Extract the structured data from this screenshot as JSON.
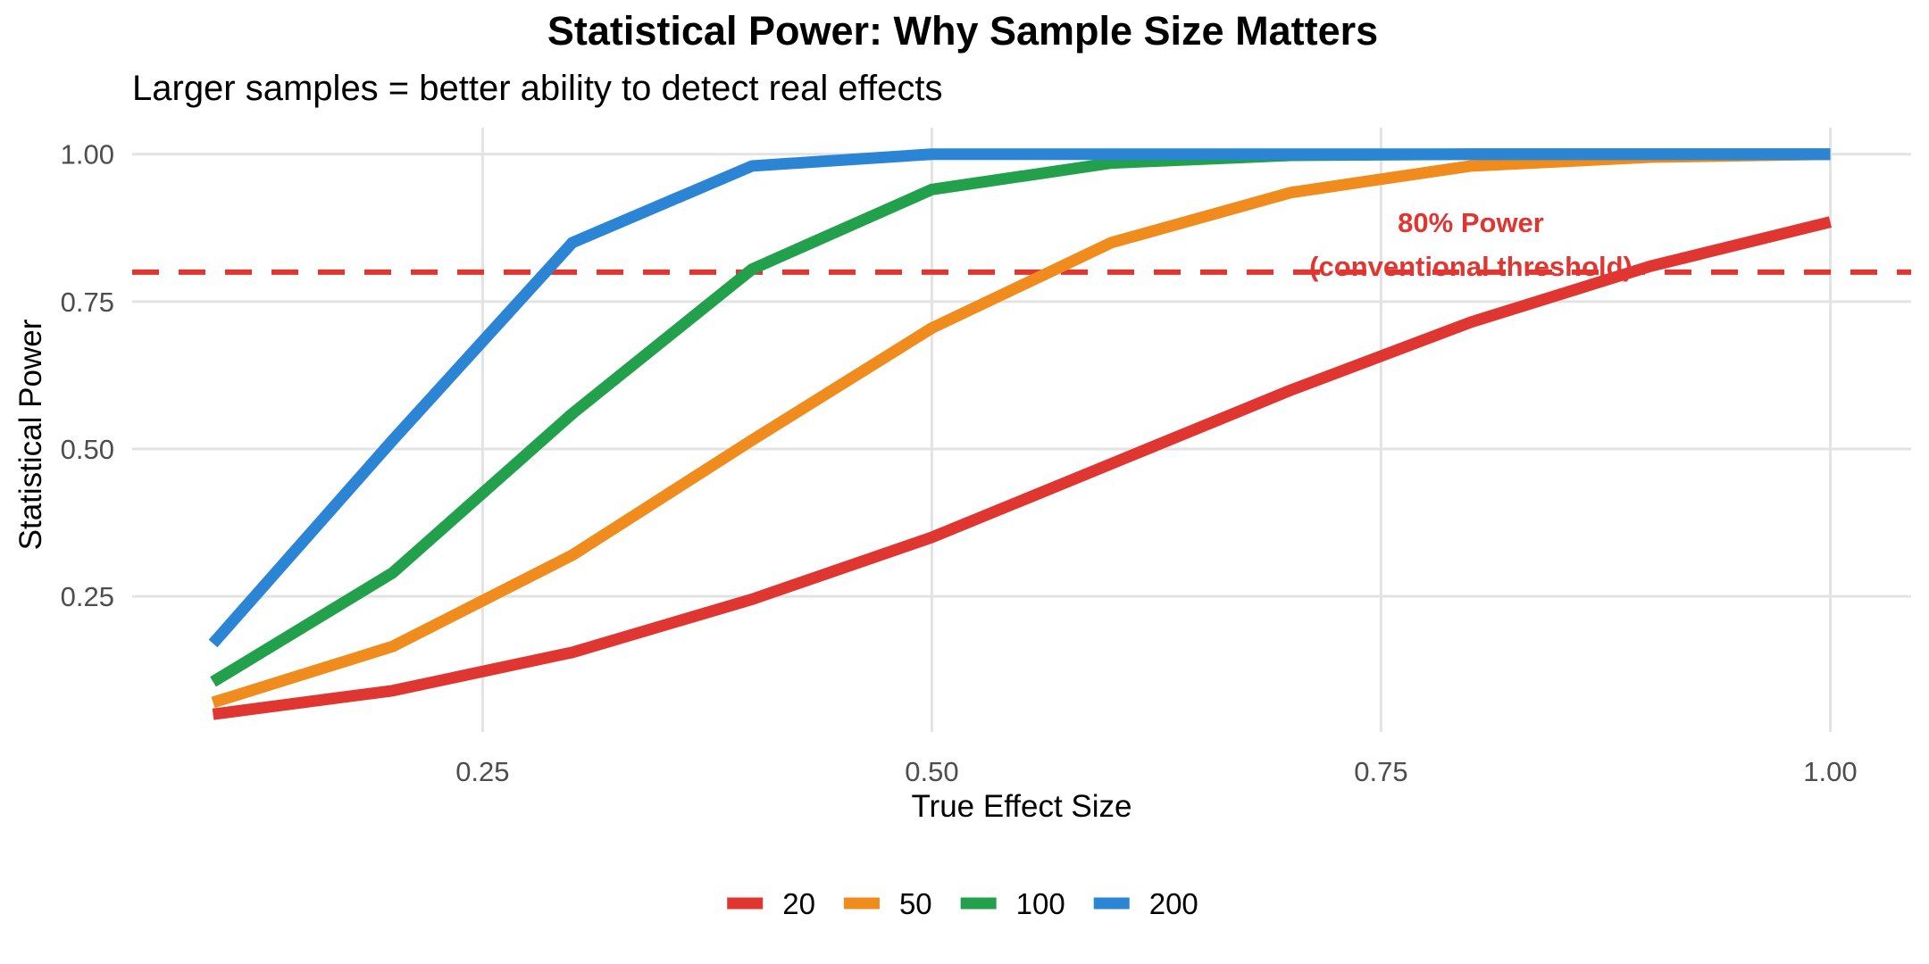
{
  "chart_data": {
    "type": "line",
    "title": "Statistical Power: Why Sample Size Matters",
    "subtitle": "Larger samples = better ability to detect real effects",
    "xlabel": "True Effect Size",
    "ylabel": "Statistical Power",
    "xlim": [
      0.055,
      1.045
    ],
    "ylim": [
      0.02,
      1.045
    ],
    "x_ticks": [
      {
        "value": 0.25,
        "label": "0.25"
      },
      {
        "value": 0.5,
        "label": "0.50"
      },
      {
        "value": 0.75,
        "label": "0.75"
      },
      {
        "value": 1.0,
        "label": "1.00"
      }
    ],
    "y_ticks": [
      {
        "value": 0.25,
        "label": "0.25"
      },
      {
        "value": 0.5,
        "label": "0.50"
      },
      {
        "value": 0.75,
        "label": "0.75"
      },
      {
        "value": 1.0,
        "label": "1.00"
      }
    ],
    "grid": true,
    "legend_position": "bottom",
    "x": [
      0.1,
      0.2,
      0.3,
      0.4,
      0.5,
      0.6,
      0.7,
      0.8,
      0.9,
      1.0
    ],
    "series": [
      {
        "name": "20",
        "color": "#e03631",
        "values": [
          0.05,
          0.09,
          0.155,
          0.245,
          0.35,
          0.475,
          0.6,
          0.715,
          0.81,
          0.885
        ]
      },
      {
        "name": "50",
        "color": "#f08c1e",
        "values": [
          0.07,
          0.165,
          0.32,
          0.515,
          0.705,
          0.85,
          0.935,
          0.98,
          0.995,
          1.0
        ]
      },
      {
        "name": "100",
        "color": "#23a04b",
        "values": [
          0.105,
          0.29,
          0.56,
          0.805,
          0.94,
          0.985,
          0.998,
          1.0,
          1.0,
          1.0
        ]
      },
      {
        "name": "200",
        "color": "#2b84d4",
        "values": [
          0.17,
          0.515,
          0.85,
          0.98,
          1.0,
          1.0,
          1.0,
          1.0,
          1.0,
          1.0
        ]
      }
    ],
    "reference_line": {
      "y": 0.8,
      "color": "#e03631",
      "style": "dashed"
    },
    "annotation": {
      "lines": [
        "80% Power",
        "(conventional threshold)"
      ],
      "x": 0.8,
      "y": 0.8,
      "color": "#e03631"
    }
  }
}
